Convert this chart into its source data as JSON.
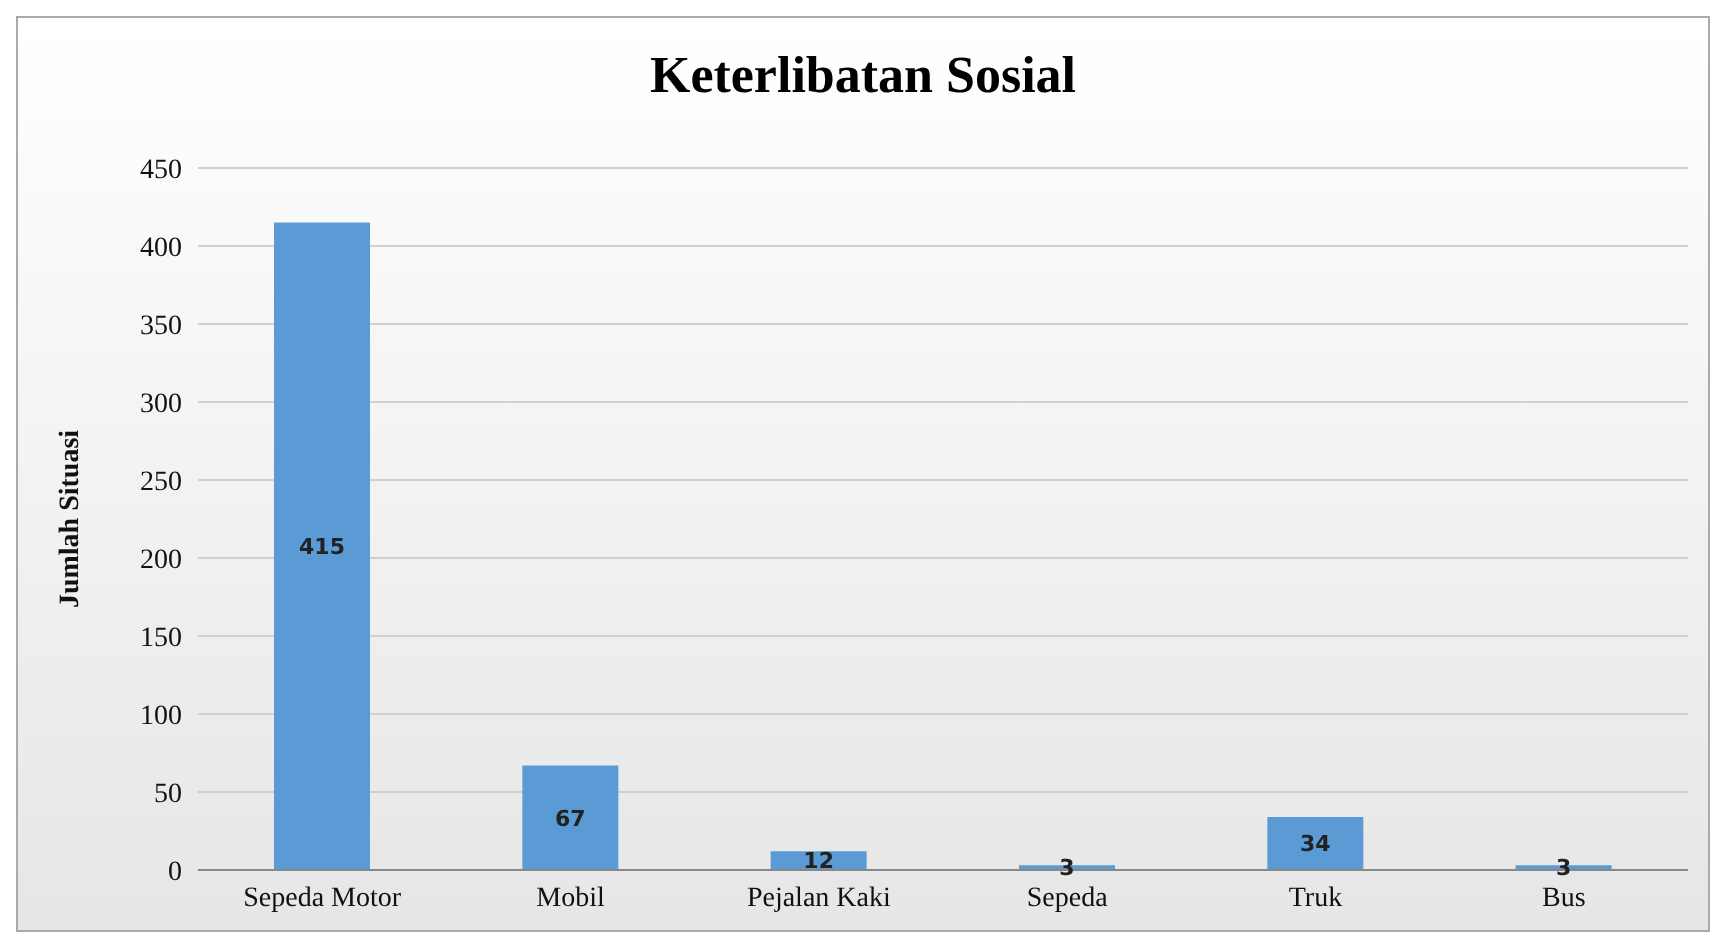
{
  "chart_data": {
    "type": "bar",
    "title": "Keterlibatan Sosial",
    "ylabel": "Jumlah Situasi",
    "categories": [
      "Sepeda Motor",
      "Mobil",
      "Pejalan Kaki",
      "Sepeda",
      "Truk",
      "Bus"
    ],
    "values": [
      415,
      67,
      12,
      3,
      34,
      3
    ],
    "color": "#5b9bd5",
    "ylim": [
      0,
      450
    ],
    "yticks": [
      0,
      50,
      100,
      150,
      200,
      250,
      300,
      350,
      400,
      450
    ],
    "grid": "y",
    "data_labels": true,
    "legend": false
  }
}
